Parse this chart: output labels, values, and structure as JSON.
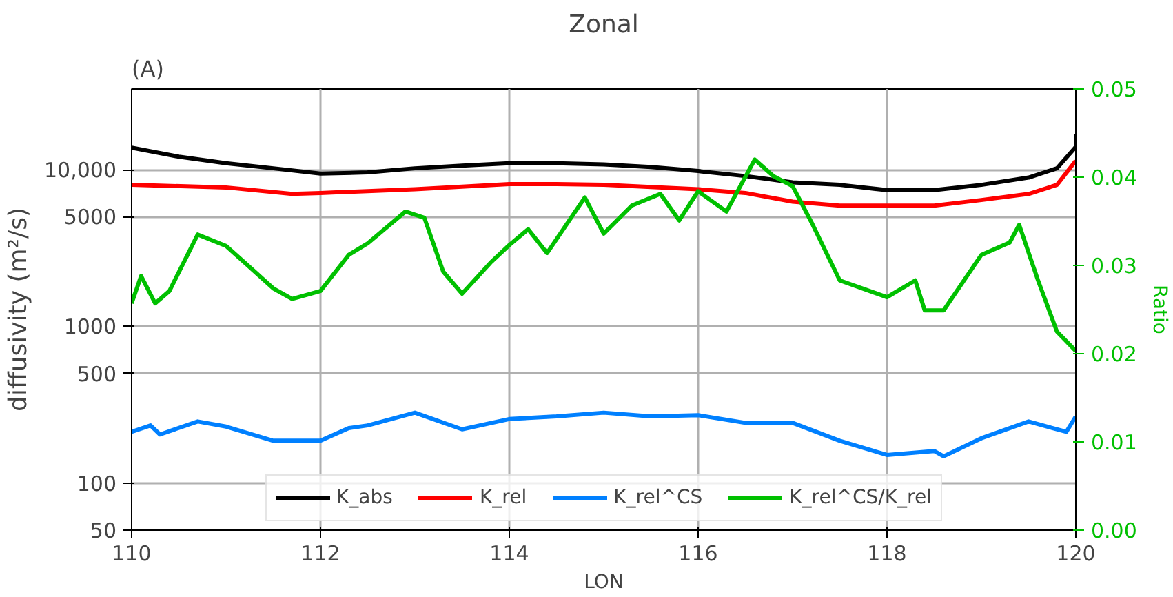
{
  "chart_data": {
    "type": "line",
    "title": "Zonal",
    "xlabel": "LON",
    "ylabel": "diffusivity (m²/s)",
    "y2label": "Ratio",
    "annotations": [
      "(A)"
    ],
    "log": "y",
    "grid": true,
    "legend": "bottom",
    "line_style": "solid",
    "marker": "none",
    "xlim": [
      110,
      120
    ],
    "xticks": [
      110,
      112,
      114,
      116,
      118,
      120
    ],
    "ylim": [
      50,
      32750
    ],
    "yticks": [
      50,
      100,
      500,
      1000,
      5000,
      {
        "value": 10000,
        "label": "10,000"
      }
    ],
    "y2lim": [
      0,
      0.05
    ],
    "y2ticks": [
      {
        "value": 0,
        "label": "0.00"
      },
      0.01,
      0.02,
      0.03,
      0.04,
      0.05
    ],
    "series": [
      {
        "name": "K_abs",
        "color": "#000000",
        "x": [
          110,
          110.5,
          111,
          111.5,
          112,
          112.5,
          113,
          113.5,
          114,
          114.5,
          115,
          115.5,
          116,
          116.5,
          117,
          117.5,
          118,
          118.5,
          119,
          119.5,
          119.8,
          120,
          120
        ],
        "values": [
          13800,
          12100,
          11000,
          10200,
          9450,
          9600,
          10200,
          10600,
          11000,
          11000,
          10800,
          10400,
          9800,
          9100,
          8300,
          8000,
          7400,
          7400,
          8000,
          8900,
          10200,
          14000,
          16900
        ]
      },
      {
        "name": "K_rel",
        "color": "#ff0000",
        "x": [
          110,
          111,
          111.7,
          112,
          113,
          114,
          114.5,
          115,
          116,
          116.5,
          117,
          117.5,
          118,
          118.5,
          119,
          119.5,
          119.8,
          120
        ],
        "values": [
          8000,
          7700,
          7000,
          7100,
          7500,
          8100,
          8100,
          8000,
          7500,
          7100,
          6250,
          5900,
          5900,
          5900,
          6400,
          7000,
          8000,
          11400
        ]
      },
      {
        "name": "K_rel^CS",
        "color": "#0080ff",
        "x": [
          110,
          110.2,
          110.3,
          110.7,
          111,
          111.5,
          112,
          112.3,
          112.5,
          113,
          113.5,
          114,
          114.5,
          115,
          115.5,
          116,
          116.5,
          117,
          117.5,
          118,
          118.5,
          118.6,
          119,
          119.5,
          119.9,
          120
        ],
        "values": [
          212,
          233,
          204,
          247,
          229,
          186,
          186,
          224,
          233,
          281,
          220,
          256,
          266,
          281,
          266,
          271,
          242,
          242,
          186,
          151,
          160,
          148,
          193,
          247,
          212,
          266
        ]
      },
      {
        "name": "K_rel^CS/K_rel",
        "color": "#00c000",
        "axis": "y2",
        "x": [
          110,
          110.1,
          110.25,
          110.4,
          110.7,
          111,
          111.2,
          111.5,
          111.7,
          112,
          112.3,
          112.5,
          112.9,
          113.1,
          113.3,
          113.5,
          113.8,
          114,
          114.2,
          114.4,
          114.8,
          115,
          115.3,
          115.6,
          115.8,
          116,
          116.3,
          116.6,
          116.8,
          117,
          117.2,
          117.5,
          118,
          118.3,
          118.4,
          118.6,
          119,
          119.3,
          119.4,
          119.6,
          119.8,
          120
        ],
        "values": [
          0.0257,
          0.0288,
          0.0257,
          0.0271,
          0.0335,
          0.0322,
          0.0303,
          0.0274,
          0.0262,
          0.0271,
          0.0312,
          0.0325,
          0.0361,
          0.0354,
          0.0293,
          0.0268,
          0.0303,
          0.0323,
          0.0341,
          0.0314,
          0.0377,
          0.0336,
          0.0368,
          0.0381,
          0.0351,
          0.0384,
          0.0361,
          0.042,
          0.0401,
          0.039,
          0.0349,
          0.0283,
          0.0264,
          0.0283,
          0.0249,
          0.0249,
          0.0312,
          0.0326,
          0.0346,
          0.0283,
          0.0225,
          0.0203
        ]
      }
    ]
  }
}
